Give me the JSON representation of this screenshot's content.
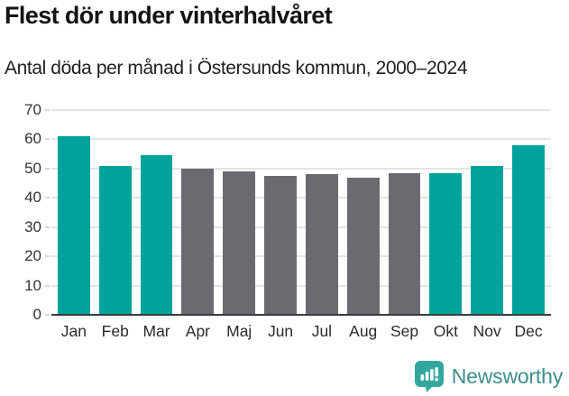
{
  "title": "Flest dör under vinterhalvåret",
  "subtitle": "Antal döda per månad i Östersunds kommun, 2000–2024",
  "chart_data": {
    "type": "bar",
    "title": "Flest dör under vinterhalvåret",
    "subtitle": "Antal döda per månad i Östersunds kommun, 2000–2024",
    "categories": [
      "Jan",
      "Feb",
      "Mar",
      "Apr",
      "Maj",
      "Jun",
      "Jul",
      "Aug",
      "Sep",
      "Okt",
      "Nov",
      "Dec"
    ],
    "values": [
      61,
      51,
      54.5,
      50,
      49,
      47.5,
      48,
      47,
      48.5,
      48.5,
      51,
      58
    ],
    "highlighted": [
      true,
      true,
      true,
      false,
      false,
      false,
      false,
      false,
      false,
      true,
      true,
      true
    ],
    "xlabel": "",
    "ylabel": "",
    "ylim": [
      0,
      70
    ],
    "yticks": [
      0,
      10,
      20,
      30,
      40,
      50,
      60,
      70
    ],
    "grid": "horizontal",
    "legend": "none",
    "colors": {
      "highlight": "#00a39b",
      "muted": "#6c6a71",
      "gridline": "#e4e4e4",
      "axis": "#373d41"
    }
  },
  "footer": {
    "brand": "Newsworthy",
    "logo_icon": "bar-chart-exclamation-pin",
    "logo_icon_color": "#33a79e",
    "logo_text_color": "#3f8e8b"
  }
}
